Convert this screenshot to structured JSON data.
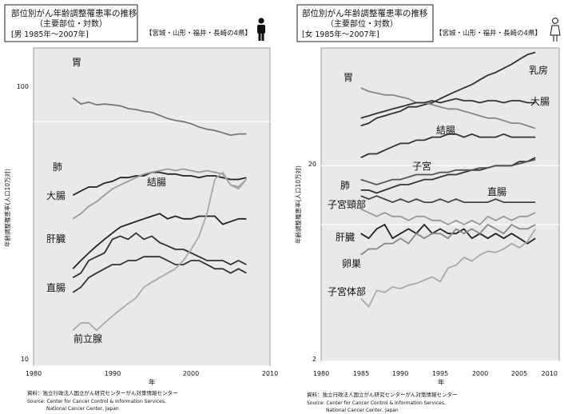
{
  "chart_data": [
    {
      "type": "line",
      "title": "部位別がん年齢調整罹患率の推移",
      "subtitle": "（主要部位・対数）",
      "population": "[男 1985年～2007年]",
      "region": "【宮城・山形・福井・長崎の4県】",
      "xlabel": "年",
      "ylabel": "年齢調整罹患率(人口10万対)",
      "yscale": "log",
      "xlim": [
        1980,
        2010
      ],
      "ylim": [
        10,
        200
      ],
      "xticks": [
        "1980",
        "1990",
        "2000",
        "2010"
      ],
      "yticks": [
        "10",
        "100"
      ],
      "grid": "horizontal",
      "source_lines": [
        "資料：独立行政法人国立がん研究センターがん対策情報センター",
        "Source: Center for Cancer Control & Information Services,",
        "National Cancer Center, Japan"
      ],
      "series": [
        {
          "name": "胃",
          "color": "#777777",
          "x": [
            1985,
            1986,
            1987,
            1988,
            1989,
            1990,
            1991,
            1992,
            1993,
            1994,
            1995,
            1996,
            1997,
            1998,
            1999,
            2000,
            2001,
            2002,
            2003,
            2004,
            2005,
            2006,
            2007
          ],
          "y": [
            125,
            118,
            120,
            117,
            118,
            117,
            116,
            113,
            112,
            110,
            109,
            106,
            103,
            101,
            100,
            98,
            95,
            93,
            92,
            90,
            88,
            89,
            89
          ]
        },
        {
          "name": "肺",
          "color": "#222222",
          "x": [
            1985,
            1986,
            1987,
            1988,
            1989,
            1990,
            1991,
            1992,
            1993,
            1994,
            1995,
            1996,
            1997,
            1998,
            1999,
            2000,
            2001,
            2002,
            2003,
            2004,
            2005,
            2006,
            2007
          ],
          "y": [
            50,
            52,
            54,
            54,
            56,
            57,
            59,
            59,
            60,
            60,
            62,
            62,
            61,
            61,
            60,
            60,
            59,
            60,
            60,
            59,
            58,
            58,
            59
          ]
        },
        {
          "name": "大腸",
          "color": "#999999",
          "x": [
            1985,
            1986,
            1987,
            1988,
            1989,
            1990,
            1991,
            1992,
            1993,
            1994,
            1995,
            1996,
            1997,
            1998,
            1999,
            2000,
            2001,
            2002,
            2003,
            2004,
            2005,
            2006,
            2007
          ],
          "y": [
            40,
            42,
            45,
            47,
            50,
            53,
            55,
            57,
            59,
            61,
            62,
            63,
            64,
            63,
            64,
            63,
            62,
            63,
            62,
            61,
            55,
            54,
            58
          ]
        },
        {
          "name": "結腸",
          "color": "#222222",
          "x": [
            1985,
            1986,
            1987,
            1988,
            1989,
            1990,
            1991,
            1992,
            1993,
            1994,
            1995,
            1996,
            1997,
            1998,
            1999,
            2000,
            2001,
            2002,
            2003,
            2004,
            2005,
            2006,
            2007
          ],
          "y": [
            25,
            27,
            29,
            31,
            33,
            35,
            37,
            38,
            39,
            40,
            41,
            42,
            40,
            41,
            40,
            40,
            41,
            41,
            41,
            38,
            39,
            40,
            40
          ]
        },
        {
          "name": "肝臓",
          "color": "#333333",
          "x": [
            1985,
            1986,
            1987,
            1988,
            1989,
            1990,
            1991,
            1992,
            1993,
            1994,
            1995,
            1996,
            1997,
            1998,
            1999,
            2000,
            2001,
            2002,
            2003,
            2004,
            2005,
            2006,
            2007
          ],
          "y": [
            23,
            24,
            27,
            28,
            29,
            33,
            34,
            33,
            35,
            33,
            34,
            32,
            31,
            30,
            30,
            29,
            28,
            27,
            27,
            27,
            26,
            27,
            26
          ]
        },
        {
          "name": "直腸",
          "color": "#333333",
          "x": [
            1985,
            1986,
            1987,
            1988,
            1989,
            1990,
            1991,
            1992,
            1993,
            1994,
            1995,
            1996,
            1997,
            1998,
            1999,
            2000,
            2001,
            2002,
            2003,
            2004,
            2005,
            2006,
            2007
          ],
          "y": [
            20,
            21,
            23,
            24,
            25,
            26,
            26,
            27,
            27,
            28,
            28,
            28,
            27,
            26,
            26,
            27,
            27,
            26,
            25,
            25,
            24,
            25,
            24
          ]
        },
        {
          "name": "前立腺",
          "color": "#aaaaaa",
          "x": [
            1985,
            1986,
            1987,
            1988,
            1989,
            1990,
            1991,
            1992,
            1993,
            1994,
            1995,
            1996,
            1997,
            1998,
            1999,
            2000,
            2001,
            2002,
            2003,
            2004,
            2005,
            2006,
            2007
          ],
          "y": [
            14,
            15,
            15,
            14,
            15,
            16,
            17,
            18,
            19,
            21,
            22,
            23,
            24,
            25,
            27,
            30,
            34,
            42,
            58,
            62,
            55,
            53,
            58
          ]
        }
      ]
    },
    {
      "type": "line",
      "title": "部位別がん年齢調整罹患率の推移",
      "subtitle": "（主要部位・対数）",
      "population": "[女 1985年～2007年]",
      "region": "【宮城・山形・福井・長崎の4県】",
      "xlabel": "年",
      "ylabel": "年齢調整罹患率(人口10万対)",
      "yscale": "log",
      "xlim": [
        1980,
        2010
      ],
      "ylim": [
        2,
        80
      ],
      "xticks": [
        "1980",
        "1985",
        "1990",
        "1995",
        "2000",
        "2005",
        "2010"
      ],
      "yticks": [
        "2",
        "20"
      ],
      "grid": "horizontal",
      "source_lines": [
        "資料：独立行政法人国立がん研究センターがん対策情報センター",
        "Source: Center for Cancer Control & Information Services,",
        "National Cancer Center, Japan"
      ],
      "series": [
        {
          "name": "乳房",
          "color": "#333333",
          "x": [
            1985,
            1986,
            1987,
            1988,
            1989,
            1990,
            1991,
            1992,
            1993,
            1994,
            1995,
            1996,
            1997,
            1998,
            1999,
            2000,
            2001,
            2002,
            2003,
            2004,
            2005,
            2006,
            2007
          ],
          "y": [
            32,
            33,
            35,
            36,
            37,
            38,
            40,
            40,
            41,
            42,
            44,
            46,
            48,
            50,
            52,
            55,
            58,
            60,
            63,
            66,
            70,
            74,
            76
          ]
        },
        {
          "name": "胃",
          "color": "#888888",
          "x": [
            1985,
            1986,
            1987,
            1988,
            1989,
            1990,
            1991,
            1992,
            1993,
            1994,
            1995,
            1996,
            1997,
            1998,
            1999,
            2000,
            2001,
            2002,
            2003,
            2004,
            2005,
            2006,
            2007
          ],
          "y": [
            50,
            48,
            47,
            46,
            46,
            45,
            44,
            42,
            42,
            41,
            40,
            39,
            39,
            38,
            37,
            36,
            35,
            35,
            34,
            33,
            33,
            32,
            31
          ]
        },
        {
          "name": "大腸",
          "color": "#333333",
          "x": [
            1985,
            1986,
            1987,
            1988,
            1989,
            1990,
            1991,
            1992,
            1993,
            1994,
            1995,
            1996,
            1997,
            1998,
            1999,
            2000,
            2001,
            2002,
            2003,
            2004,
            2005,
            2006,
            2007
          ],
          "y": [
            35,
            36,
            37,
            38,
            39,
            40,
            41,
            42,
            42,
            43,
            42,
            43,
            44,
            43,
            43,
            42,
            43,
            43,
            42,
            43,
            43,
            42,
            42
          ]
        },
        {
          "name": "結腸",
          "color": "#333333",
          "x": [
            1985,
            1986,
            1987,
            1988,
            1989,
            1990,
            1991,
            1992,
            1993,
            1994,
            1995,
            1996,
            1997,
            1998,
            1999,
            2000,
            2001,
            2002,
            2003,
            2004,
            2005,
            2006,
            2007
          ],
          "y": [
            22,
            23,
            23,
            24,
            25,
            26,
            26,
            27,
            27,
            28,
            28,
            29,
            29,
            28,
            29,
            28,
            28,
            28,
            29,
            28,
            28,
            28,
            28
          ]
        },
        {
          "name": "肺",
          "color": "#333333",
          "x": [
            1985,
            1986,
            1987,
            1988,
            1989,
            1990,
            1991,
            1992,
            1993,
            1994,
            1995,
            1996,
            1997,
            1998,
            1999,
            2000,
            2001,
            2002,
            2003,
            2004,
            2005,
            2006,
            2007
          ],
          "y": [
            15,
            15,
            14.5,
            15,
            15.5,
            16,
            16,
            16.5,
            17,
            17,
            17.5,
            18,
            18,
            18.5,
            19,
            19,
            19.5,
            20,
            20,
            20,
            21,
            21,
            22
          ]
        },
        {
          "name": "子宮",
          "color": "#555555",
          "x": [
            1985,
            1986,
            1987,
            1988,
            1989,
            1990,
            1991,
            1992,
            1993,
            1994,
            1995,
            1996,
            1997,
            1998,
            1999,
            2000,
            2001,
            2002,
            2003,
            2004,
            2005,
            2006,
            2007
          ],
          "y": [
            17,
            16.5,
            16,
            16.5,
            17,
            17,
            17.5,
            18,
            18,
            18,
            18.5,
            18.5,
            19,
            19,
            19,
            19.5,
            19.5,
            20,
            20,
            20,
            20.5,
            21,
            21.5
          ]
        },
        {
          "name": "直腸",
          "color": "#444444",
          "x": [
            1985,
            1986,
            1987,
            1988,
            1989,
            1990,
            1991,
            1992,
            1993,
            1994,
            1995,
            1996,
            1997,
            1998,
            1999,
            2000,
            2001,
            2002,
            2003,
            2004,
            2005,
            2006,
            2007
          ],
          "y": [
            14,
            13.5,
            14,
            13.5,
            13,
            13.5,
            13,
            13.5,
            13,
            13,
            13.5,
            13,
            13.5,
            13,
            13,
            13,
            13,
            13.5,
            13,
            13,
            13,
            13,
            13
          ]
        },
        {
          "name": "子宮頸部",
          "color": "#999999",
          "x": [
            1985,
            1986,
            1987,
            1988,
            1989,
            1990,
            1991,
            1992,
            1993,
            1994,
            1995,
            1996,
            1997,
            1998,
            1999,
            2000,
            2001,
            2002,
            2003,
            2004,
            2005,
            2006,
            2007
          ],
          "y": [
            12,
            11.5,
            11,
            11.5,
            11,
            11,
            10.5,
            11,
            11,
            10.5,
            10.5,
            10,
            10.5,
            10,
            10.5,
            10,
            11,
            10.5,
            11,
            10.5,
            11,
            11,
            11.5
          ]
        },
        {
          "name": "肝臓",
          "color": "#222222",
          "x": [
            1985,
            1986,
            1987,
            1988,
            1989,
            1990,
            1991,
            1992,
            1993,
            1994,
            1995,
            1996,
            1997,
            1998,
            1999,
            2000,
            2001,
            2002,
            2003,
            2004,
            2005,
            2006,
            2007
          ],
          "y": [
            9,
            8.5,
            9.5,
            10,
            8.5,
            9,
            9.5,
            9,
            10,
            9,
            9.5,
            9,
            9,
            9.5,
            8.5,
            9,
            8.5,
            9,
            8.5,
            9,
            8.5,
            8,
            8.5
          ]
        },
        {
          "name": "卵巣",
          "color": "#888888",
          "x": [
            1985,
            1986,
            1987,
            1988,
            1989,
            1990,
            1991,
            1992,
            1993,
            1994,
            1995,
            1996,
            1997,
            1998,
            1999,
            2000,
            2001,
            2002,
            2003,
            2004,
            2005,
            2006,
            2007
          ],
          "y": [
            7,
            7.5,
            7.5,
            8,
            8,
            8.5,
            8,
            9,
            8.5,
            9,
            9,
            8.5,
            9.5,
            9,
            9.5,
            9,
            10,
            9.5,
            9,
            10,
            9.5,
            9.5,
            10
          ]
        },
        {
          "name": "子宮体部",
          "color": "#aaaaaa",
          "x": [
            1985,
            1986,
            1987,
            1988,
            1989,
            1990,
            1991,
            1992,
            1993,
            1994,
            1995,
            1996,
            1997,
            1998,
            1999,
            2000,
            2001,
            2002,
            2003,
            2004,
            2005,
            2006,
            2007
          ],
          "y": [
            4.2,
            3.8,
            4.6,
            4.5,
            4.8,
            4.7,
            4.9,
            5,
            5.2,
            5.4,
            5.1,
            6,
            6.2,
            6.8,
            6.5,
            7,
            7.3,
            7.2,
            7.5,
            8,
            7.6,
            8.2,
            9.5
          ]
        }
      ]
    }
  ],
  "labels": {
    "left": {
      "title": "部位別がん年齢調整罹患率の推移",
      "subtitle": "（主要部位・対数）",
      "population": "[男 1985年～2007年]",
      "region": "【宮城・山形・福井・長崎の4県】",
      "xlabel": "年",
      "ylabel": "年齢調整罹患率(人口10万対)",
      "yticks": [
        "100",
        "10"
      ],
      "xticks": [
        "1980",
        "1990",
        "2000",
        "2010"
      ],
      "source1": "資料：独立行政法人国立がん研究センターがん対策情報センター",
      "source2": "Source: Center for Cancer Control & Information Services,",
      "source3": "National Cancer Center, Japan",
      "series": [
        "胃",
        "肺",
        "大腸",
        "結腸",
        "肝臓",
        "直腸",
        "前立腺"
      ]
    },
    "right": {
      "title": "部位別がん年齢調整罹患率の推移",
      "subtitle": "（主要部位・対数）",
      "population": "[女 1985年～2007年]",
      "region": "【宮城・山形・福井・長崎の4県】",
      "xlabel": "年",
      "ylabel": "年齢調整罹患率(人口10万対)",
      "yticks": [
        "20",
        "2"
      ],
      "xticks": [
        "1980",
        "1985",
        "1990",
        "1995",
        "2000",
        "2005",
        "2010"
      ],
      "source1": "資料：独立行政法人国立がん研究センターがん対策情報センター",
      "source2": "Source: Center for Cancer Control & Information Services,",
      "source3": "National Cancer Center, Japan",
      "series": [
        "乳房",
        "胃",
        "大腸",
        "結腸",
        "肺",
        "子宮",
        "直腸",
        "子宮頸部",
        "肝臓",
        "卵巣",
        "子宮体部"
      ]
    }
  }
}
